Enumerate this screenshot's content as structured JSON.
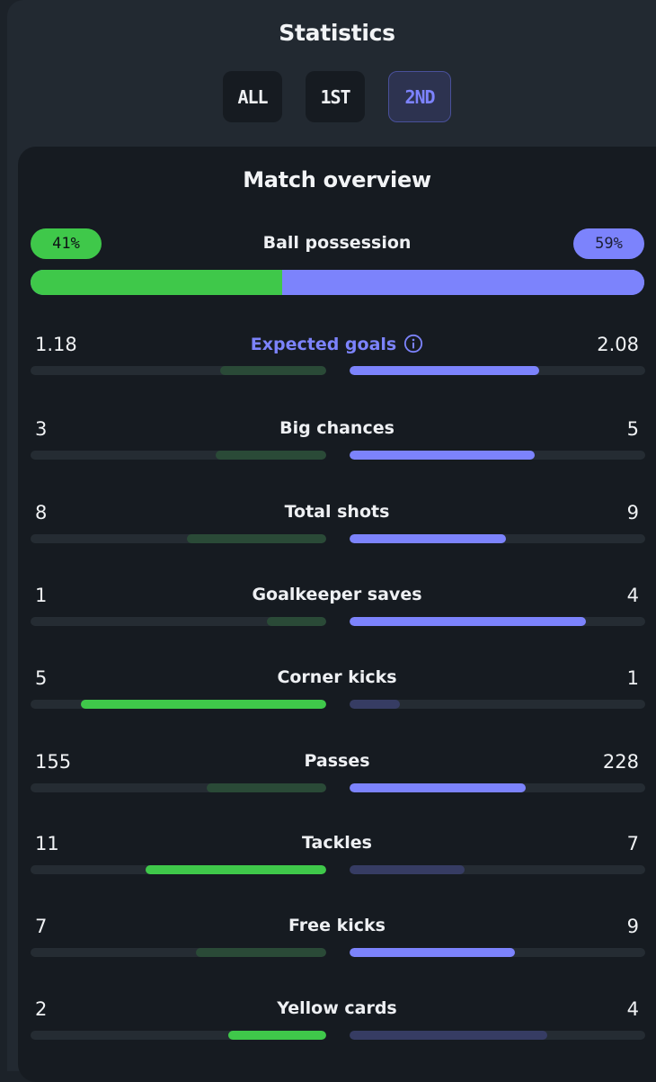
{
  "header": {
    "title": "Statistics"
  },
  "tabs": [
    {
      "label": "ALL",
      "active": false
    },
    {
      "label": "1ST",
      "active": false
    },
    {
      "label": "2ND",
      "active": true
    }
  ],
  "overview": {
    "title": "Match overview",
    "possession": {
      "label": "Ball possession",
      "home": "41%",
      "away": "59%",
      "home_fraction": 0.41
    },
    "stats": [
      {
        "label": "Expected goals",
        "home": "1.18",
        "away": "2.08",
        "home_fill": 0.36,
        "away_fill": 0.64,
        "winner": "away",
        "info": true
      },
      {
        "label": "Big chances",
        "home": "3",
        "away": "5",
        "home_fill": 0.375,
        "away_fill": 0.625,
        "winner": "away"
      },
      {
        "label": "Total shots",
        "home": "8",
        "away": "9",
        "away_fill": 0.53,
        "home_fill": 0.47,
        "winner": "away"
      },
      {
        "label": "Goalkeeper saves",
        "home": "1",
        "away": "4",
        "home_fill": 0.2,
        "away_fill": 0.8,
        "winner": "away"
      },
      {
        "label": "Corner kicks",
        "home": "5",
        "away": "1",
        "home_fill": 0.83,
        "away_fill": 0.17,
        "winner": "home"
      },
      {
        "label": "Passes",
        "home": "155",
        "away": "228",
        "home_fill": 0.405,
        "away_fill": 0.595,
        "winner": "away"
      },
      {
        "label": "Tackles",
        "home": "11",
        "away": "7",
        "home_fill": 0.61,
        "away_fill": 0.39,
        "winner": "home"
      },
      {
        "label": "Free kicks",
        "home": "7",
        "away": "9",
        "home_fill": 0.44,
        "away_fill": 0.56,
        "winner": "away"
      },
      {
        "label": "Yellow cards",
        "home": "2",
        "away": "4",
        "home_fill": 0.33,
        "away_fill": 0.67,
        "winner": "home"
      }
    ]
  },
  "colors": {
    "home": "#3fc84a",
    "away": "#7c83fc",
    "home_dim": "#2a4a37",
    "away_dim": "#363c63"
  },
  "icons": {
    "info": "info-circle-icon"
  }
}
